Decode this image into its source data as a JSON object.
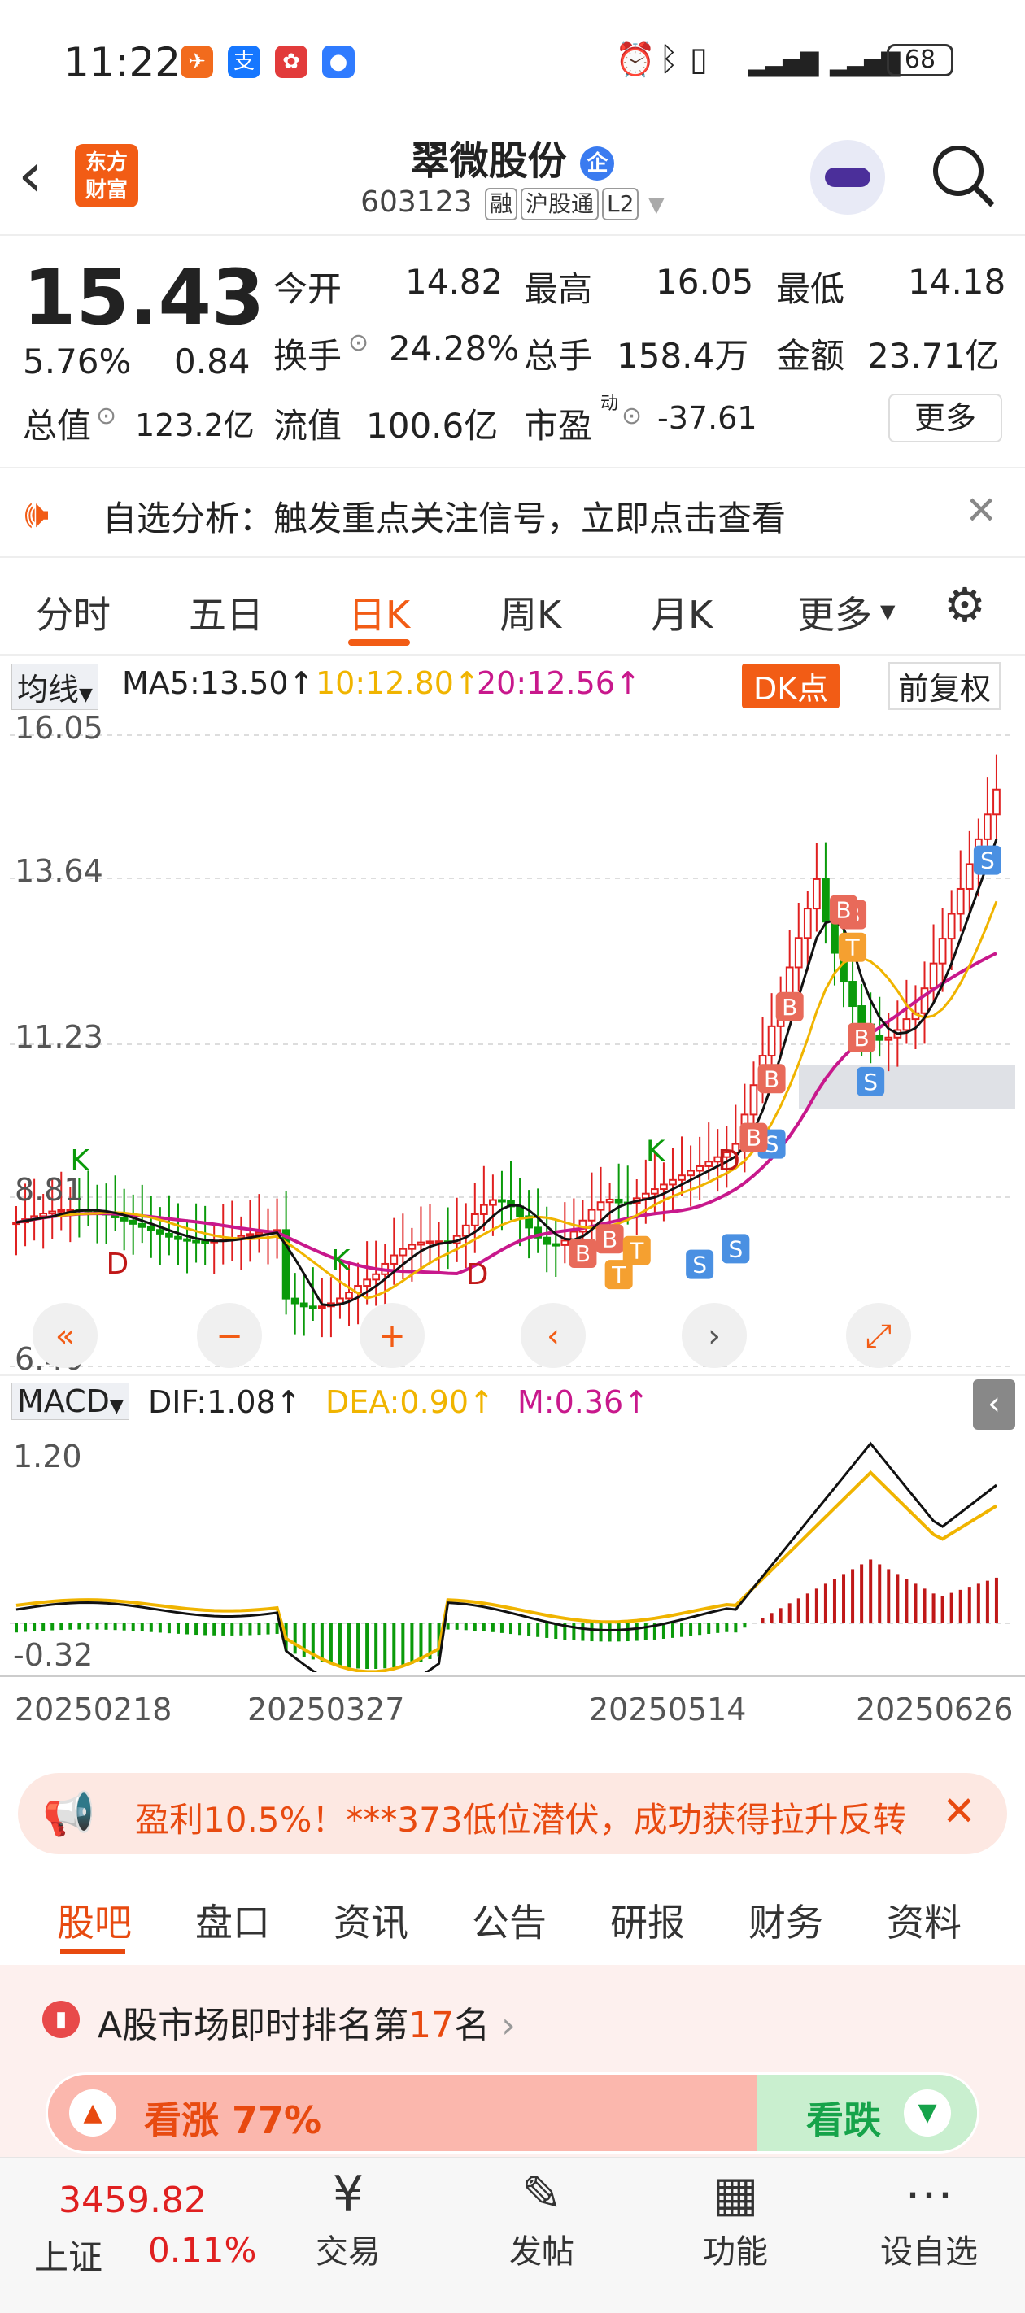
{
  "status_bar": {
    "time": "11:22",
    "battery": "68"
  },
  "header": {
    "logo_text": [
      "东方",
      "财富"
    ],
    "stock_name": "翠微股份",
    "badge": "企",
    "code": "603123",
    "tags": [
      "融",
      "沪股通",
      "L2"
    ]
  },
  "quote": {
    "price": "15.43",
    "change_pct": "5.76%",
    "change_abs": "0.84",
    "open_label": "今开",
    "open": "14.82",
    "high_label": "最高",
    "high": "16.05",
    "low_label": "最低",
    "low": "14.18",
    "turnover_label": "换手",
    "turnover": "24.28%",
    "volume_label": "总手",
    "volume": "158.4万",
    "amount_label": "金额",
    "amount": "23.71亿",
    "mktcap_label": "总值",
    "mktcap": "123.2亿",
    "float_label": "流值",
    "float": "100.6亿",
    "pe_label": "市盈",
    "pe_sup": "动",
    "pe": "-37.61",
    "more": "更多"
  },
  "alert": {
    "text": "自选分析：触发重点关注信号，立即点击查看"
  },
  "chart_tabs": [
    "分时",
    "五日",
    "日K",
    "周K",
    "月K",
    "更多"
  ],
  "active_tab": "日K",
  "ma_bar": {
    "selector": "均线",
    "ma5": "MA5:13.50↑",
    "ma10": "10:12.80↑",
    "ma20": "20:12.56↑",
    "dk": "DK点",
    "adjust": "前复权"
  },
  "colors": {
    "up": "#e02020",
    "down": "#0a9a0a",
    "ma5": "#111111",
    "ma10": "#f0b400",
    "ma20": "#c8188c",
    "accent": "#f25c15"
  },
  "chart_data": {
    "type": "candlestick",
    "y_ticks": [
      "16.05",
      "13.64",
      "11.23",
      "8.81",
      "6.40"
    ],
    "x_ticks": [
      "20250218",
      "20250327",
      "20250514",
      "20250626"
    ],
    "ylim": [
      6.4,
      16.05
    ],
    "markers": [
      "K",
      "D",
      "K",
      "D",
      "K",
      "D",
      "S",
      "S",
      "S",
      "S",
      "S",
      "B",
      "B",
      "B",
      "B",
      "B",
      "B",
      "B",
      "B",
      "T",
      "T",
      "T"
    ]
  },
  "macd": {
    "selector": "MACD",
    "dif": "DIF:1.08↑",
    "dea": "DEA:0.90↑",
    "m": "M:0.36↑",
    "y_ticks": [
      "1.20",
      "-0.32"
    ]
  },
  "promo": {
    "text": "盈利10.5%！***373低位潜伏，成功获得拉升反转"
  },
  "bottom_tabs": [
    "股吧",
    "盘口",
    "资讯",
    "公告",
    "研报",
    "财务",
    "资料"
  ],
  "rank": {
    "prefix": "A股市场即时排名第",
    "num": "17",
    "suffix": "名"
  },
  "sentiment": {
    "up_label": "看涨",
    "up_pct": "77%",
    "down_label": "看跌"
  },
  "nav": {
    "index_value": "3459.82",
    "index_name": "上证",
    "index_change": "0.11%",
    "items": [
      "交易",
      "发帖",
      "功能",
      "设自选"
    ]
  }
}
